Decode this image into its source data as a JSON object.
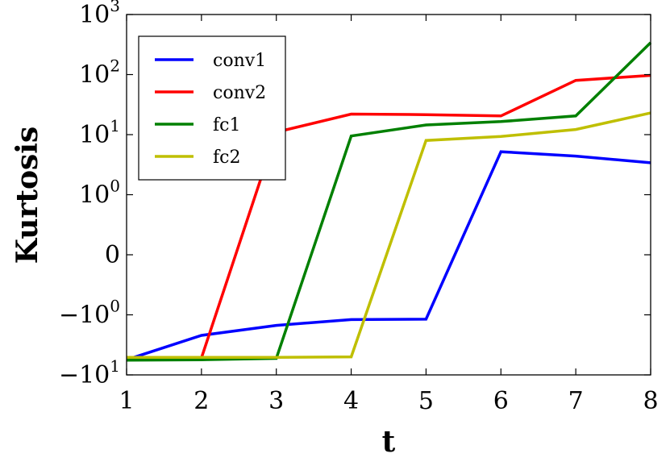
{
  "chart_data": {
    "type": "line",
    "xlabel": "t",
    "ylabel": "Kurtosis",
    "x": [
      1,
      2,
      3,
      4,
      5,
      6,
      7,
      8
    ],
    "xlim": [
      1,
      8
    ],
    "yscale": "symlog",
    "ylim": [
      -10,
      1000
    ],
    "xticks": [
      "1",
      "2",
      "3",
      "4",
      "5",
      "6",
      "7",
      "8"
    ],
    "yticks": [
      {
        "value": 1000,
        "base": "10",
        "sign": "",
        "exp": "3"
      },
      {
        "value": 100,
        "base": "10",
        "sign": "",
        "exp": "2"
      },
      {
        "value": 10,
        "base": "10",
        "sign": "",
        "exp": "1"
      },
      {
        "value": 1,
        "base": "10",
        "sign": "",
        "exp": "0"
      },
      {
        "value": 0,
        "base": "0",
        "sign": "",
        "exp": ""
      },
      {
        "value": -1,
        "base": "10",
        "sign": "−",
        "exp": "0"
      },
      {
        "value": -10,
        "base": "10",
        "sign": "−",
        "exp": "1"
      }
    ],
    "grid": false,
    "legend_position": "top-left",
    "series": [
      {
        "name": "conv1",
        "color": "#0000ff",
        "values": [
          -5.6,
          -2.2,
          -1.5,
          -1.2,
          -1.18,
          5.2,
          4.4,
          3.4
        ]
      },
      {
        "name": "conv2",
        "color": "#ff0000",
        "values": [
          -5.2,
          -5.2,
          11,
          22,
          21.5,
          20.5,
          80,
          97
        ]
      },
      {
        "name": "fc1",
        "color": "#008000",
        "values": [
          -5.7,
          -5.6,
          -5.3,
          9.5,
          14.5,
          16.5,
          20.5,
          340
        ]
      },
      {
        "name": "fc2",
        "color": "#bfbf00",
        "values": [
          -5.1,
          -5.1,
          -5.1,
          -5.0,
          8.0,
          9.3,
          12.2,
          23
        ]
      }
    ]
  }
}
